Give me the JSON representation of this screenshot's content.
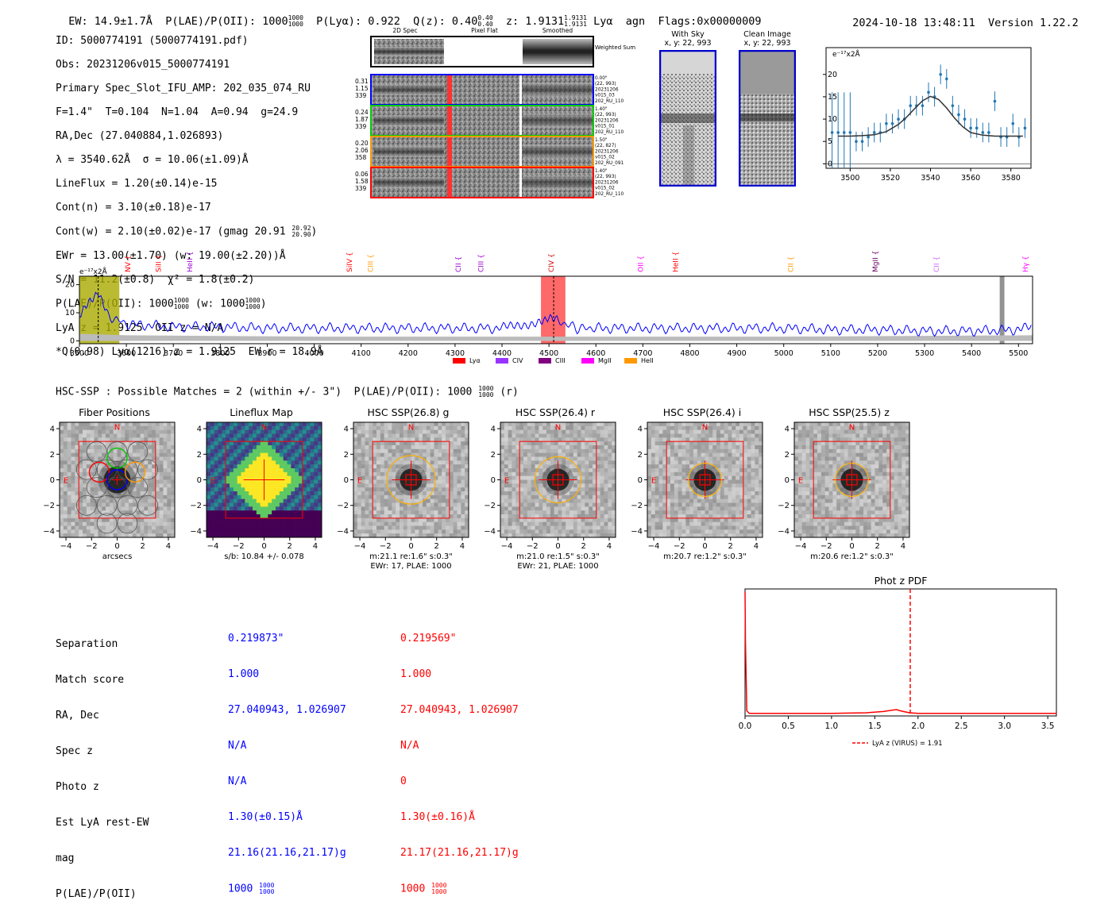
{
  "header": {
    "ew": "EW: 14.9±1.7Å",
    "plae_label": "P(LAE)/P(OII): 1000",
    "plae_hi": "1000",
    "plae_lo": "1000",
    "plya": "P(Lyα): 0.922",
    "qz": "Q(z): 0.40",
    "qz_hi": "0.40",
    "qz_lo": "0.40",
    "z": "z: 1.9131",
    "z_hi": "1.9131",
    "z_lo": "1.9131",
    "line": "Lyα",
    "agn": "agn",
    "flags": "Flags:0x00000009",
    "timestamp": "2024-10-18 13:48:11",
    "version": "Version 1.22.2"
  },
  "info": {
    "id": "ID: 5000774191 (5000774191.pdf)",
    "obs": "Obs: 20231206v015_5000774191",
    "primary": "Primary Spec_Slot_IFU_AMP: 202_035_074_RU",
    "fit": "F=1.4\"  T=0.104  N=1.04  A=0.94  g=24.9",
    "radec": "RA,Dec (27.040884,1.026893)",
    "lambda": "λ = 3540.62Å  σ = 10.06(±1.09)Å",
    "lineflux": "LineFlux = 1.20(±0.14)e-15",
    "contn": "Cont(n) = 3.10(±0.18)e-17",
    "contw": "Cont(w) = 2.10(±0.02)e-17 (gmag 20.91",
    "gmag_hi": "20.92",
    "gmag_lo": "20.90",
    "ewr": "EWr = 13.00(±1.70) (w: 19.00(±2.20))Å",
    "sn": "S/N = 11.2(±0.8)  χ² = 1.8(±0.2)",
    "plae": "P(LAE)/P(OII): 1000",
    "plae_hi": "1000",
    "plae_lo": "1000",
    "plae_w": "(w: 1000",
    "plae_w_hi": "1000",
    "plae_w_lo": "1000",
    "lyaz": "LyA z = 1.9125  OII z = N/A",
    "q": "*Q(0.98) Lyα(1216) z = 1.9125  EW r = 18.9Å"
  },
  "cutouts": {
    "col_headers": [
      "2D Spec",
      "Pixel Flat",
      "Smoothed"
    ],
    "weighted_sum": "Weighted Sum",
    "rows": [
      {
        "w1": "0.31",
        "w2": "1.15",
        "w3": "339",
        "meta": [
          "0.00\"",
          "(22, 993)",
          "20231206",
          "v015_03",
          "202_RU_110"
        ],
        "color": "#0000ff"
      },
      {
        "w1": "0.24",
        "w2": "1.87",
        "w3": "339",
        "meta": [
          "1.40\"",
          "(22, 993)",
          "20231206",
          "v015_01",
          "202_RU_110"
        ],
        "color": "#00cc00"
      },
      {
        "w1": "0.20",
        "w2": "2.06",
        "w3": "358",
        "meta": [
          "1.50\"",
          "(22, 827)",
          "20231206",
          "v015_02",
          "202_RU_091"
        ],
        "color": "#ff9900"
      },
      {
        "w1": "0.06",
        "w2": "1.58",
        "w3": "339",
        "meta": [
          "1.40\"",
          "(22, 993)",
          "20231206",
          "v015_02",
          "202_RU_110"
        ],
        "color": "#ff0000"
      }
    ],
    "with_sky": "With Sky",
    "with_sky_xy": "x, y: 22, 993",
    "clean_image": "Clean Image",
    "clean_image_xy": "x, y: 22, 993"
  },
  "zoom_chart": {
    "ylabel": "e⁻¹⁷x2Å"
  },
  "full_spectrum": {
    "ylabel": "e⁻¹⁷x2Å",
    "lines": [
      {
        "name": "NV",
        "x": 3608,
        "color": "#ff0000"
      },
      {
        "name": "SiII",
        "x": 3673,
        "color": "#ff0000"
      },
      {
        "name": "HeII",
        "x": 3740,
        "color": "#9900cc"
      },
      {
        "name": "SiIV",
        "x": 4080,
        "color": "#ff0000"
      },
      {
        "name": "CIII",
        "x": 4125,
        "color": "#ff9900"
      },
      {
        "name": "CII",
        "x": 4312,
        "color": "#9900cc"
      },
      {
        "name": "CIII",
        "x": 4360,
        "color": "#9900cc"
      },
      {
        "name": "CIV",
        "x": 4510,
        "color": "#cc0000"
      },
      {
        "name": "OII",
        "x": 4700,
        "color": "#ff00ff"
      },
      {
        "name": "HeII",
        "x": 4775,
        "color": "#ff0000"
      },
      {
        "name": "CII",
        "x": 5020,
        "color": "#ff9900"
      },
      {
        "name": "MgII",
        "x": 5200,
        "color": "#660066"
      },
      {
        "name": "CII",
        "x": 5330,
        "color": "#cc66ff"
      },
      {
        "name": "Hγ",
        "x": 5520,
        "color": "#ff00ff"
      }
    ],
    "legend": [
      {
        "name": "Lyα",
        "color": "#ff0000"
      },
      {
        "name": "CIV",
        "color": "#9933ff"
      },
      {
        "name": "CIII",
        "color": "#800080"
      },
      {
        "name": "MgII",
        "color": "#ff00ff"
      },
      {
        "name": "HeII",
        "color": "#ff9900"
      }
    ]
  },
  "hsc": {
    "heading": "HSC-SSP : Possible Matches = 2 (within +/- 3\")  P(LAE)/P(OII): 1000",
    "heading_hi": "1000",
    "heading_lo": "1000",
    "heading_tail": "(r)",
    "panels": [
      {
        "title": "Fiber Positions",
        "caption1": "arcsecs",
        "caption2": ""
      },
      {
        "title": "Lineflux Map",
        "caption1": "s/b: 10.84 +/- 0.078",
        "caption2": ""
      },
      {
        "title": "HSC SSP(26.8) g",
        "caption1": "m:21.1  re:1.6\"  s:0.3\"",
        "caption2": "EWr: 17, PLAE: 1000"
      },
      {
        "title": "HSC SSP(26.4) r",
        "caption1": "m:21.0  re:1.5\"  s:0.3\"",
        "caption2": "EWr: 21, PLAE: 1000"
      },
      {
        "title": "HSC SSP(26.4) i",
        "caption1": "m:20.7  re:1.2\"  s:0.3\"",
        "caption2": ""
      },
      {
        "title": "HSC SSP(25.5) z",
        "caption1": "m:20.6  re:1.2\"  s:0.3\"",
        "caption2": ""
      }
    ],
    "compass_n": "N",
    "compass_e": "E"
  },
  "table": {
    "labels": [
      "Separation",
      "Match score",
      "RA, Dec",
      "Spec z",
      "Photo z",
      "Est LyA rest-EW",
      "mag",
      "P(LAE)/P(OII)"
    ],
    "blue": [
      "0.219873\"",
      "1.000",
      "27.040943, 1.026907",
      "N/A",
      "N/A",
      "1.30(±0.15)Å",
      "21.16(21.16,21.17)g",
      "1000"
    ],
    "red": [
      "0.219569\"",
      "1.000",
      "27.040943, 1.026907",
      "N/A",
      "0",
      "1.30(±0.16)Å",
      "21.17(21.16,21.17)g",
      "1000"
    ],
    "frac_hi": "1000",
    "frac_lo": "1000"
  },
  "chart_data": [
    {
      "type": "line",
      "title": "",
      "xlabel": "",
      "ylabel": "e⁻¹⁷x2Å",
      "xlim": [
        3488,
        3590
      ],
      "ylim": [
        -1,
        26
      ],
      "xticks": [
        3500,
        3520,
        3540,
        3560,
        3580
      ],
      "yticks": [
        0,
        5,
        10,
        15,
        20
      ],
      "series": [
        {
          "name": "data",
          "color": "#1f77b4",
          "x": [
            3491,
            3494,
            3497,
            3500,
            3503,
            3506,
            3509,
            3512,
            3515,
            3518,
            3521,
            3524,
            3527,
            3530,
            3533,
            3536,
            3539,
            3542,
            3545,
            3548,
            3551,
            3554,
            3557,
            3560,
            3563,
            3566,
            3569,
            3572,
            3575,
            3578,
            3581,
            3584,
            3587
          ],
          "y": [
            7,
            7,
            7,
            7,
            5,
            5,
            6,
            7,
            7,
            9,
            9,
            10,
            10,
            13,
            13,
            13,
            16,
            15,
            20,
            19,
            13,
            11,
            10,
            8,
            8,
            7,
            7,
            14,
            6,
            6,
            9,
            6,
            8
          ]
        },
        {
          "name": "fit",
          "color": "#333333",
          "x": [
            3494,
            3500,
            3506,
            3512,
            3518,
            3524,
            3528,
            3532,
            3536,
            3540,
            3544,
            3548,
            3552,
            3556,
            3560,
            3566,
            3572,
            3578,
            3586
          ],
          "y": [
            6.2,
            6.2,
            6.3,
            6.5,
            7.2,
            8.8,
            10.4,
            12.3,
            14.1,
            15.1,
            14.4,
            12.5,
            10.2,
            8.3,
            7.0,
            6.4,
            6.2,
            6.2,
            6.2
          ]
        }
      ]
    },
    {
      "type": "line",
      "title": "",
      "xlabel": "",
      "ylabel": "e⁻¹⁷x2Å",
      "xlim": [
        3500,
        5530
      ],
      "ylim": [
        -1,
        23
      ],
      "xticks": [
        3500,
        3600,
        3700,
        3800,
        3900,
        4000,
        4100,
        4200,
        4300,
        4400,
        4500,
        4600,
        4700,
        4800,
        4900,
        5000,
        5100,
        5200,
        5300,
        5400,
        5500
      ],
      "yticks": [
        0,
        10,
        20
      ],
      "series": [
        {
          "name": "flux",
          "color": "#0000ff",
          "x": [
            3500,
            3520,
            3540,
            3560,
            3600,
            3700,
            3800,
            3900,
            4000,
            4100,
            4200,
            4300,
            4400,
            4480,
            4500,
            4520,
            4560,
            4600,
            4700,
            4800,
            4900,
            5000,
            5100,
            5200,
            5300,
            5400,
            5500,
            5530
          ],
          "y": [
            8,
            14,
            18,
            9,
            6,
            5,
            5,
            4.5,
            4.5,
            4.5,
            4.5,
            4.5,
            4.5,
            7,
            9,
            7,
            4.5,
            4.5,
            4.5,
            4.5,
            4.5,
            4.5,
            4,
            4,
            3.5,
            3.5,
            4,
            5
          ]
        },
        {
          "name": "noise",
          "color": "#aaaaaa",
          "x": [
            3500,
            3600,
            4000,
            4500,
            5000,
            5530
          ],
          "y": [
            2.5,
            2,
            1.5,
            1.5,
            1.5,
            2
          ]
        }
      ],
      "highlights": [
        {
          "xmin": 3500,
          "xmax": 3585,
          "color": "#aaaa00"
        },
        {
          "xmin": 4483,
          "xmax": 4535,
          "color": "#ff4444"
        },
        {
          "xmin": 5460,
          "xmax": 5470,
          "color": "#777777"
        }
      ]
    },
    {
      "type": "line",
      "title": "Phot z PDF",
      "xlabel": "",
      "ylabel": "",
      "xlim": [
        0,
        3.6
      ],
      "ylim": [
        0,
        1
      ],
      "xticks": [
        0.0,
        0.5,
        1.0,
        1.5,
        2.0,
        2.5,
        3.0,
        3.5
      ],
      "xticklabels": [
        "0.0",
        "0.5",
        "1.0",
        "1.5",
        "2.0",
        "2.5",
        "3.0",
        "3.5"
      ],
      "legend": "LyA z (VIRUS) = 1.91",
      "marker_z": 1.91,
      "series": [
        {
          "name": "pdf",
          "color": "#ff0000",
          "x": [
            0,
            0.005,
            0.02,
            0.05,
            0.1,
            0.5,
            1.0,
            1.4,
            1.6,
            1.7,
            1.75,
            1.8,
            1.9,
            2.0,
            2.5,
            3.0,
            3.6
          ],
          "y": [
            0.98,
            0.6,
            0.04,
            0.02,
            0.02,
            0.02,
            0.02,
            0.025,
            0.035,
            0.045,
            0.05,
            0.04,
            0.025,
            0.02,
            0.02,
            0.02,
            0.02
          ]
        }
      ]
    }
  ]
}
